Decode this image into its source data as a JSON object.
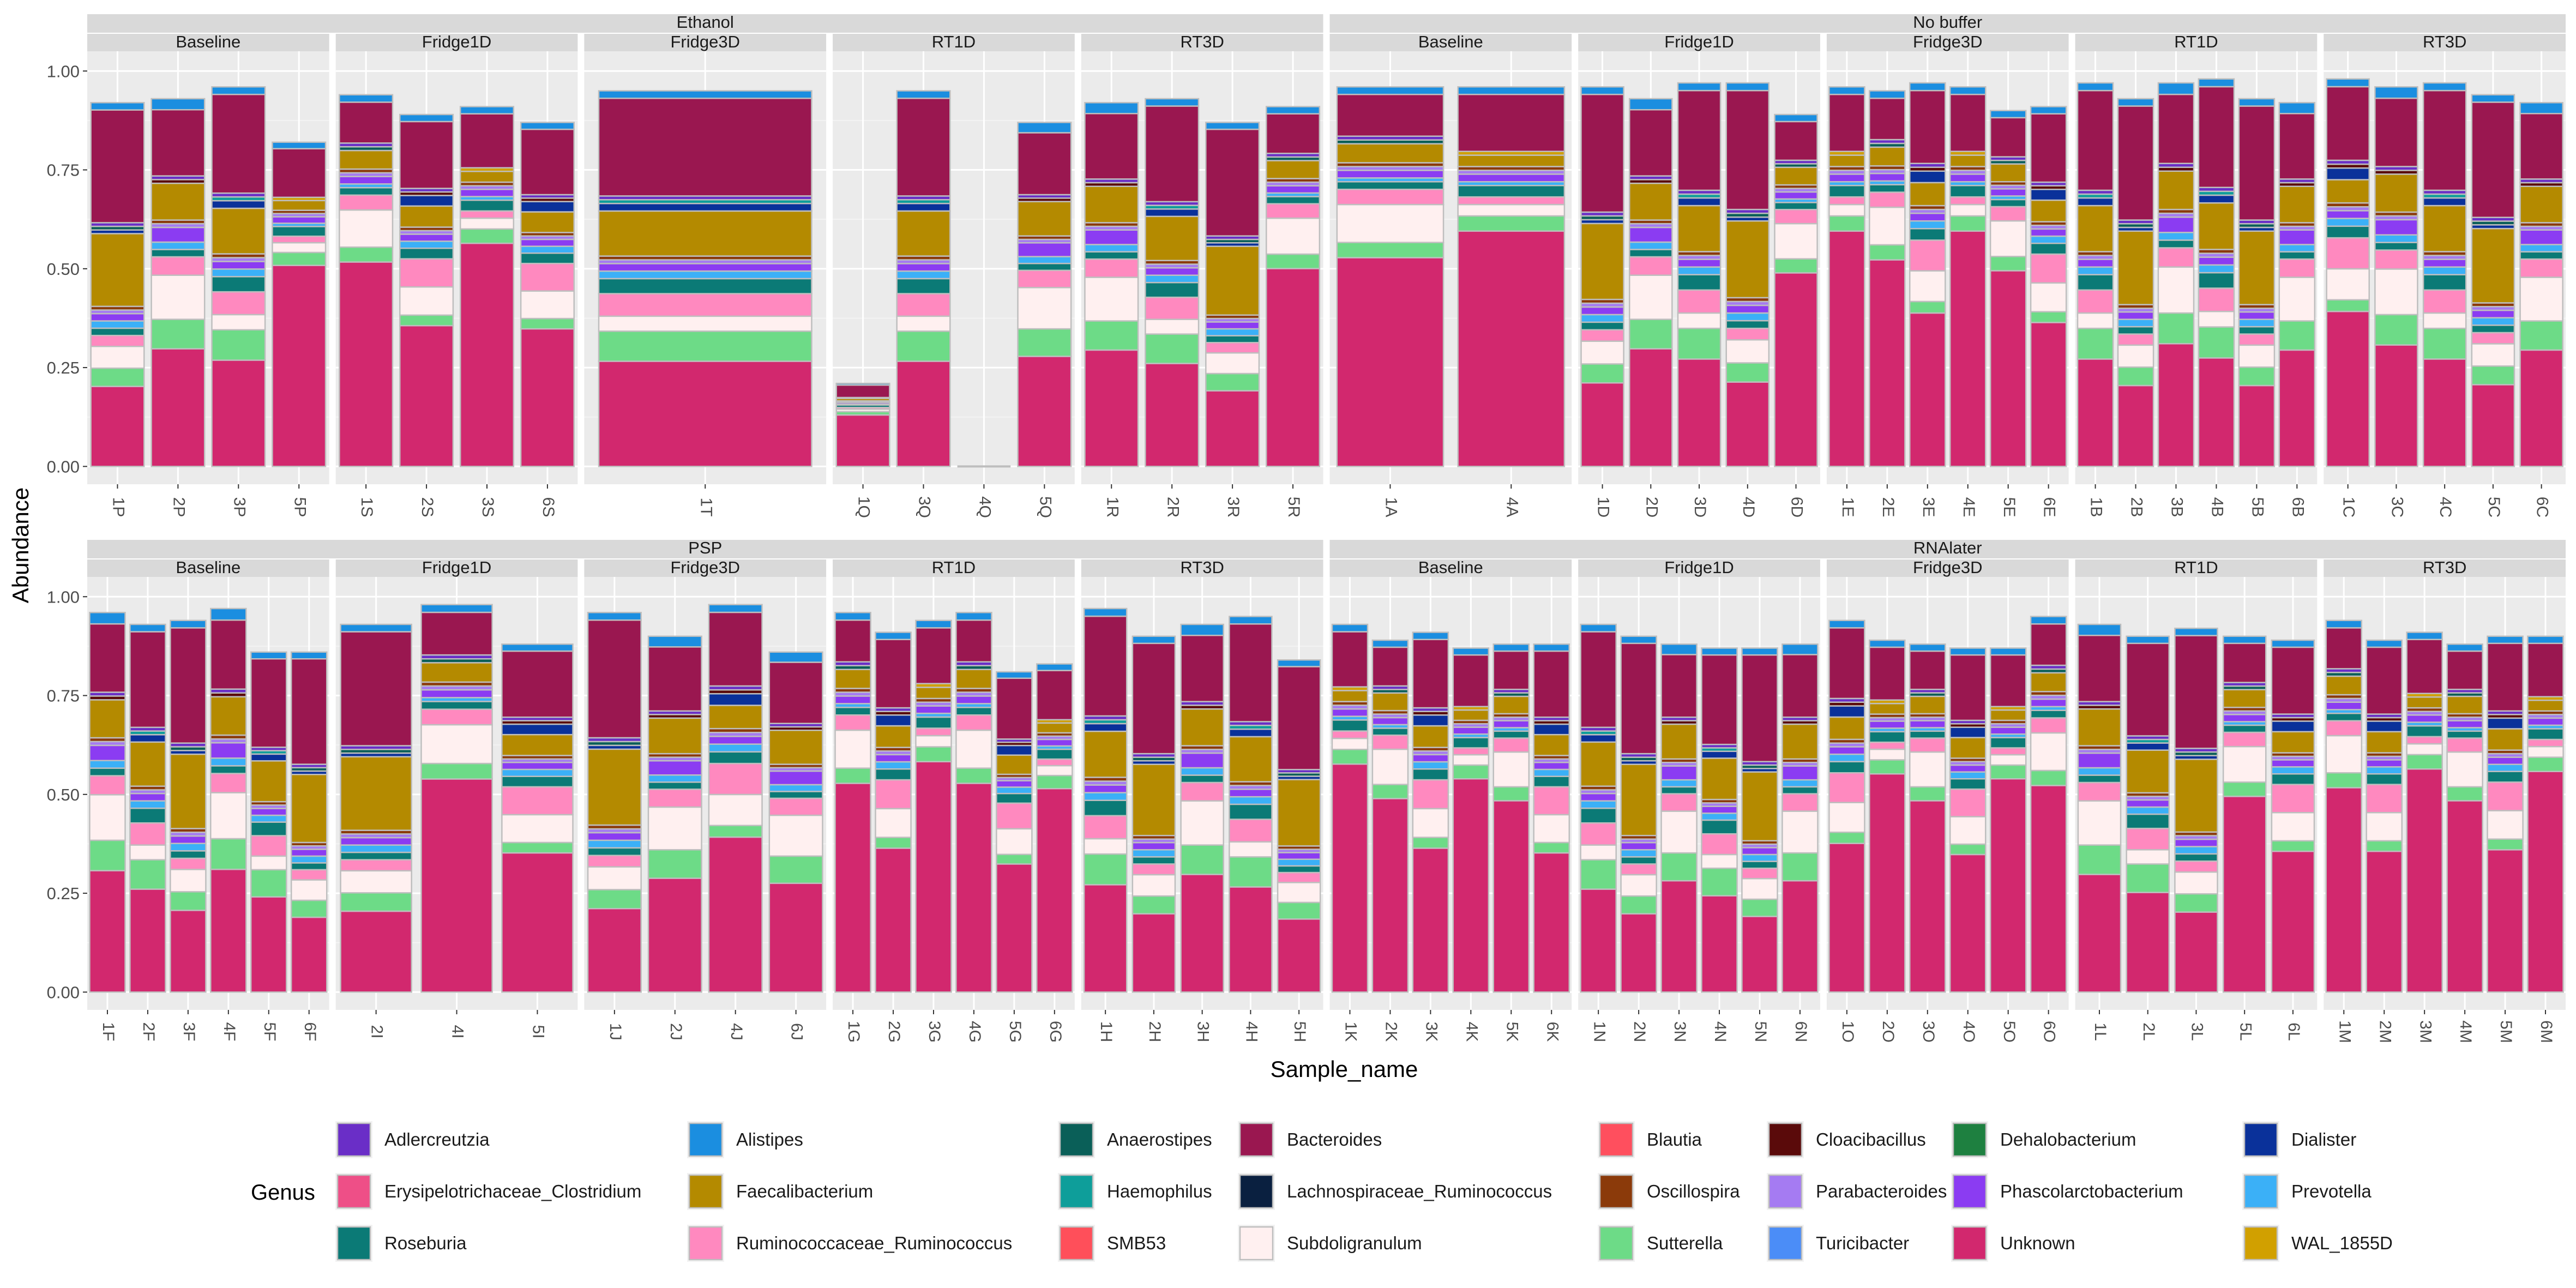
{
  "chart_data": {
    "type": "bar",
    "stacked": true,
    "ylabel": "Abundance",
    "xlabel": "Sample_name",
    "ylim": [
      0,
      1
    ],
    "yticks": [
      "0.00",
      "0.25",
      "0.50",
      "0.75",
      "1.00"
    ],
    "grid": true,
    "legend": {
      "title": "Genus",
      "position": "bottom",
      "items": [
        {
          "name": "Adlercreutzia",
          "color": "#6A2EC7"
        },
        {
          "name": "Alistipes",
          "color": "#1B8EE0"
        },
        {
          "name": "Anaerostipes",
          "color": "#0A5F58"
        },
        {
          "name": "Bacteroides",
          "color": "#9A1750"
        },
        {
          "name": "Blautia",
          "color": "#FF4F5E"
        },
        {
          "name": "Cloacibacillus",
          "color": "#5A0A0A"
        },
        {
          "name": "Dehalobacterium",
          "color": "#1E8040"
        },
        {
          "name": "Dialister",
          "color": "#0A319A"
        },
        {
          "name": "Erysipelotrichaceae_Clostridium",
          "color": "#EE4F87"
        },
        {
          "name": "Faecalibacterium",
          "color": "#B48A00"
        },
        {
          "name": "Haemophilus",
          "color": "#0E9E9A"
        },
        {
          "name": "Lachnospiraceae_Ruminococcus",
          "color": "#0A2040"
        },
        {
          "name": "Oscillospira",
          "color": "#8B3A0A"
        },
        {
          "name": "Parabacteroides",
          "color": "#A57BF2"
        },
        {
          "name": "Phascolarctobacterium",
          "color": "#8B3CF2"
        },
        {
          "name": "Prevotella",
          "color": "#3BB0F7"
        },
        {
          "name": "Roseburia",
          "color": "#0B7A76"
        },
        {
          "name": "Ruminococcaceae_Ruminococcus",
          "color": "#FF89BF"
        },
        {
          "name": "SMB53",
          "color": "#FF4F5A"
        },
        {
          "name": "Subdoligranulum",
          "color": "#FFF0F0"
        },
        {
          "name": "Sutterella",
          "color": "#6DDB87"
        },
        {
          "name": "Turicibacter",
          "color": "#4B8DF7"
        },
        {
          "name": "Unknown",
          "color": "#D2286E"
        },
        {
          "name": "WAL_1855D",
          "color": "#D1A000"
        }
      ]
    },
    "panels": [
      {
        "buffer": "Ethanol",
        "conditions": [
          {
            "name": "Baseline",
            "samples": [
              "1P",
              "2P",
              "3P",
              "5P"
            ],
            "totals": [
              0.92,
              0.93,
              0.96,
              0.82
            ]
          },
          {
            "name": "Fridge1D",
            "samples": [
              "1S",
              "2S",
              "3S",
              "6S"
            ],
            "totals": [
              0.94,
              0.89,
              0.91,
              0.87
            ]
          },
          {
            "name": "Fridge3D",
            "samples": [
              "1T"
            ],
            "totals": [
              0.95
            ]
          },
          {
            "name": "RT1D",
            "samples": [
              "1Q",
              "3Q",
              "4Q",
              "5Q"
            ],
            "totals": [
              0.21,
              0.95,
              0.0,
              0.87
            ]
          },
          {
            "name": "RT3D",
            "samples": [
              "1R",
              "2R",
              "3R",
              "5R"
            ],
            "totals": [
              0.92,
              0.93,
              0.87,
              0.91
            ]
          }
        ]
      },
      {
        "buffer": "No buffer",
        "conditions": [
          {
            "name": "Baseline",
            "samples": [
              "1A",
              "4A"
            ],
            "totals": [
              0.96,
              0.96
            ]
          },
          {
            "name": "Fridge1D",
            "samples": [
              "1D",
              "2D",
              "3D",
              "4D",
              "6D"
            ],
            "totals": [
              0.96,
              0.93,
              0.97,
              0.97,
              0.89
            ]
          },
          {
            "name": "Fridge3D",
            "samples": [
              "1E",
              "2E",
              "3E",
              "4E",
              "5E",
              "6E"
            ],
            "totals": [
              0.96,
              0.95,
              0.97,
              0.96,
              0.9,
              0.91
            ]
          },
          {
            "name": "RT1D",
            "samples": [
              "1B",
              "2B",
              "3B",
              "4B",
              "5B",
              "6B"
            ],
            "totals": [
              0.97,
              0.93,
              0.97,
              0.98,
              0.93,
              0.92
            ]
          },
          {
            "name": "RT3D",
            "samples": [
              "1C",
              "3C",
              "4C",
              "5C",
              "6C"
            ],
            "totals": [
              0.98,
              0.96,
              0.97,
              0.94,
              0.92
            ]
          }
        ]
      },
      {
        "buffer": "PSP",
        "conditions": [
          {
            "name": "Baseline",
            "samples": [
              "1F",
              "2F",
              "3F",
              "4F",
              "5F",
              "6F"
            ],
            "totals": [
              0.96,
              0.93,
              0.94,
              0.97,
              0.86,
              0.86
            ]
          },
          {
            "name": "Fridge1D",
            "samples": [
              "2I",
              "4I",
              "5I"
            ],
            "totals": [
              0.93,
              0.98,
              0.88
            ]
          },
          {
            "name": "Fridge3D",
            "samples": [
              "1J",
              "2J",
              "4J",
              "6J"
            ],
            "totals": [
              0.96,
              0.9,
              0.98,
              0.86
            ]
          },
          {
            "name": "RT1D",
            "samples": [
              "1G",
              "2G",
              "3G",
              "4G",
              "5G",
              "6G"
            ],
            "totals": [
              0.96,
              0.91,
              0.94,
              0.96,
              0.81,
              0.83
            ]
          },
          {
            "name": "RT3D",
            "samples": [
              "1H",
              "2H",
              "3H",
              "4H",
              "5H"
            ],
            "totals": [
              0.97,
              0.9,
              0.93,
              0.95,
              0.84
            ]
          }
        ]
      },
      {
        "buffer": "RNAlater",
        "conditions": [
          {
            "name": "Baseline",
            "samples": [
              "1K",
              "2K",
              "3K",
              "4K",
              "5K",
              "6K"
            ],
            "totals": [
              0.93,
              0.89,
              0.91,
              0.87,
              0.88,
              0.88
            ]
          },
          {
            "name": "Fridge1D",
            "samples": [
              "1N",
              "2N",
              "3N",
              "4N",
              "5N",
              "6N"
            ],
            "totals": [
              0.93,
              0.9,
              0.88,
              0.87,
              0.87,
              0.88
            ]
          },
          {
            "name": "Fridge3D",
            "samples": [
              "1O",
              "2O",
              "3O",
              "4O",
              "5O",
              "6O"
            ],
            "totals": [
              0.94,
              0.89,
              0.88,
              0.87,
              0.87,
              0.95
            ]
          },
          {
            "name": "RT1D",
            "samples": [
              "1L",
              "2L",
              "3L",
              "5L",
              "6L"
            ],
            "totals": [
              0.93,
              0.9,
              0.92,
              0.9,
              0.89
            ]
          },
          {
            "name": "RT3D",
            "samples": [
              "1M",
              "2M",
              "3M",
              "4M",
              "5M",
              "6M"
            ],
            "totals": [
              0.94,
              0.89,
              0.91,
              0.88,
              0.9,
              0.9
            ]
          }
        ]
      }
    ]
  }
}
